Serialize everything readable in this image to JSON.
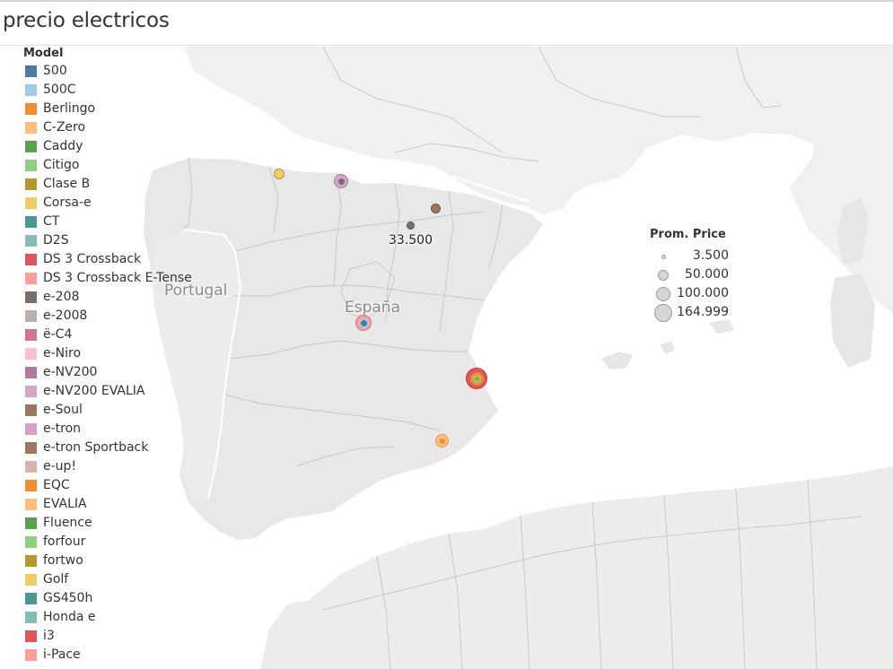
{
  "title": "precio electricos",
  "legend": {
    "title": "Model",
    "items": [
      {
        "label": "500",
        "color": "#4e79a7"
      },
      {
        "label": "500C",
        "color": "#a0cbe8"
      },
      {
        "label": "Berlingo",
        "color": "#f28e2b"
      },
      {
        "label": "C-Zero",
        "color": "#ffbe7d"
      },
      {
        "label": "Caddy",
        "color": "#59a14f"
      },
      {
        "label": "Citigo",
        "color": "#8cd17d"
      },
      {
        "label": "Clase B",
        "color": "#b6992d"
      },
      {
        "label": "Corsa-e",
        "color": "#f1ce63"
      },
      {
        "label": "CT",
        "color": "#499894"
      },
      {
        "label": "D2S",
        "color": "#86bcb6"
      },
      {
        "label": "DS 3 Crossback",
        "color": "#e15759"
      },
      {
        "label": "DS 3 Crossback E-Tense",
        "color": "#ff9d9a"
      },
      {
        "label": "e-208",
        "color": "#79706e"
      },
      {
        "label": "e-2008",
        "color": "#bab0ac"
      },
      {
        "label": "ë-C4",
        "color": "#d37295"
      },
      {
        "label": "e-Niro",
        "color": "#fabfd2"
      },
      {
        "label": "e-NV200",
        "color": "#b07aa1"
      },
      {
        "label": "e-NV200 EVALIA",
        "color": "#d4a6c8"
      },
      {
        "label": "e-Soul",
        "color": "#9d7660"
      },
      {
        "label": "e-tron",
        "color": "#d7a0c8"
      },
      {
        "label": "e-tron Sportback",
        "color": "#9d7660"
      },
      {
        "label": "e-up!",
        "color": "#d7b5a6"
      },
      {
        "label": "EQC",
        "color": "#f28e2b"
      },
      {
        "label": "EVALIA",
        "color": "#ffbe7d"
      },
      {
        "label": "Fluence",
        "color": "#59a14f"
      },
      {
        "label": "forfour",
        "color": "#8cd17d"
      },
      {
        "label": "fortwo",
        "color": "#b6992d"
      },
      {
        "label": "Golf",
        "color": "#f1ce63"
      },
      {
        "label": "GS450h",
        "color": "#499894"
      },
      {
        "label": "Honda e",
        "color": "#86bcb6"
      },
      {
        "label": "i3",
        "color": "#e15759"
      },
      {
        "label": "i-Pace",
        "color": "#ff9d9a"
      }
    ]
  },
  "size_legend": {
    "title": "Prom. Price",
    "items": [
      {
        "label": "3.500",
        "value": 3500
      },
      {
        "label": "50.000",
        "value": 50000
      },
      {
        "label": "100.000",
        "value": 100000
      },
      {
        "label": "164.999",
        "value": 164999
      }
    ]
  },
  "map_labels": {
    "portugal": "Portugal",
    "espana": "España",
    "value_label": "33.500"
  },
  "markers": [
    {
      "name": "asturias-marker",
      "colors": [
        "#f1ce63"
      ]
    },
    {
      "name": "cantabria-marker",
      "colors": [
        "#d4a6c8",
        "#b07aa1",
        "#79706e"
      ]
    },
    {
      "name": "navarra-marker",
      "colors": [
        "#9d7660"
      ]
    },
    {
      "name": "burgos-marker",
      "colors": [
        "#79706e"
      ]
    },
    {
      "name": "madrid-marker",
      "colors": [
        "#ff9d9a",
        "#e15759",
        "#a0cbe8",
        "#4e79a7"
      ]
    },
    {
      "name": "valencia-marker",
      "colors": [
        "#e15759",
        "#f28e2b",
        "#8cd17d",
        "#b6992d"
      ]
    },
    {
      "name": "murcia-marker",
      "colors": [
        "#ffbe7d",
        "#f28e2b"
      ]
    }
  ]
}
